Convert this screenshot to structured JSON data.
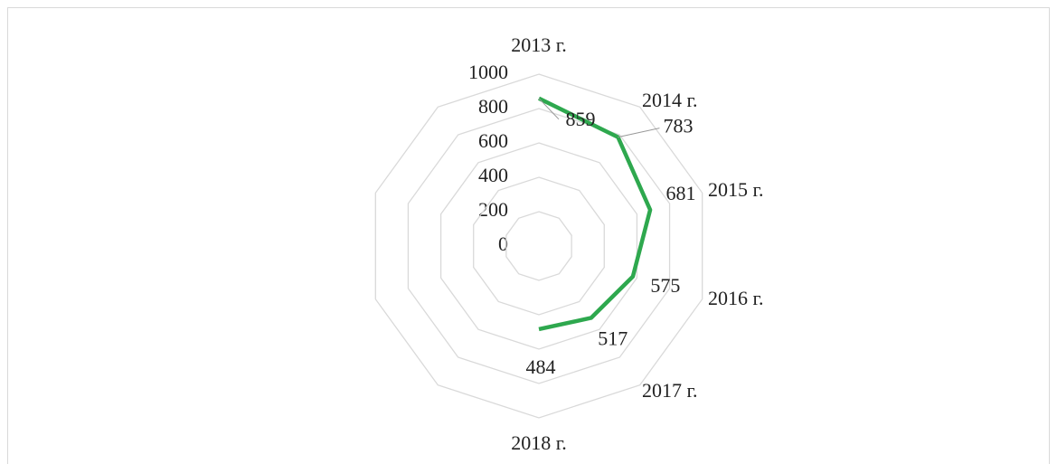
{
  "chart_data": {
    "type": "radar",
    "categories": [
      "2013 г.",
      "2014 г.",
      "2015 г.",
      "2016 г.",
      "2017 г.",
      "2018 г.",
      null,
      null,
      null,
      null
    ],
    "values": [
      859,
      783,
      681,
      575,
      517,
      484,
      null,
      null,
      null,
      null
    ],
    "color": "#2ea84e",
    "ylim": [
      0,
      1000
    ],
    "yticks": [
      0,
      200,
      400,
      600,
      800,
      1000
    ],
    "grid": true
  }
}
